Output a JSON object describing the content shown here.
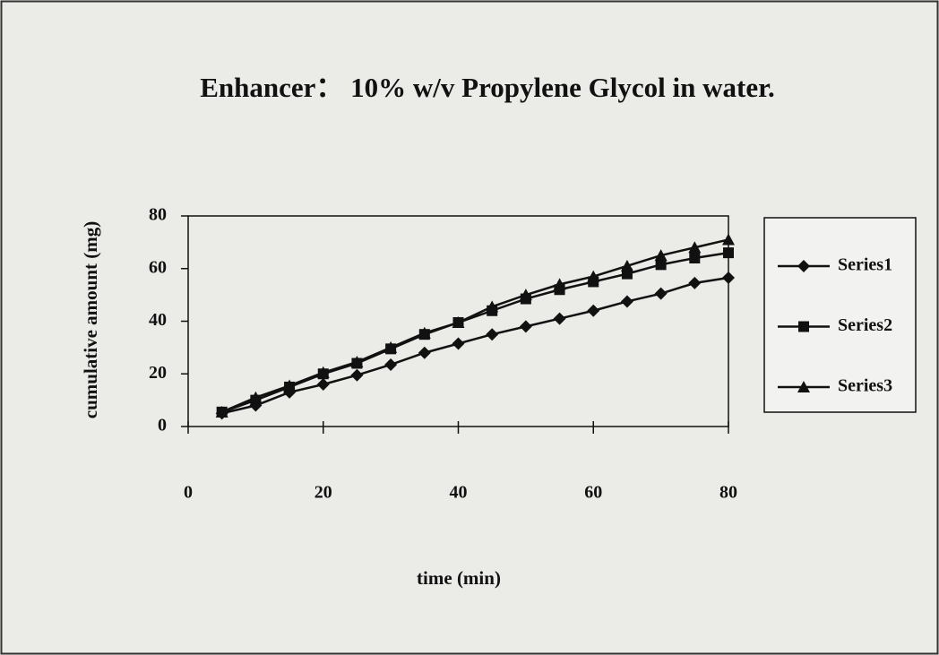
{
  "chart_data": {
    "type": "line",
    "title": "Enhancer： 10% w/v Propylene Glycol in water.",
    "x_label": "time (min)",
    "y_label": "cumulative amount (mg)",
    "x": [
      5,
      10,
      15,
      20,
      25,
      30,
      35,
      40,
      45,
      50,
      55,
      60,
      65,
      70,
      75,
      80
    ],
    "series": [
      {
        "name": "Series1",
        "color": "#111111",
        "marker": "diamond",
        "values": [
          5,
          8,
          13,
          16,
          19.5,
          23.5,
          28,
          31.5,
          35,
          38,
          41,
          44,
          47.5,
          50.5,
          54.5,
          56.5
        ]
      },
      {
        "name": "Series2",
        "color": "#111111",
        "marker": "square",
        "values": [
          5.5,
          10,
          15,
          20,
          24,
          29.5,
          35,
          39.5,
          44,
          48.5,
          52,
          55,
          58,
          61.5,
          64,
          66
        ]
      },
      {
        "name": "Series3",
        "color": "#111111",
        "marker": "triangle",
        "values": [
          5.5,
          11,
          15.5,
          20.5,
          24.5,
          30,
          35.5,
          39.5,
          45.5,
          50,
          54,
          57,
          61,
          65,
          68,
          71
        ]
      }
    ],
    "xlim": [
      0,
      80
    ],
    "xticks": [
      0,
      20,
      40,
      60,
      80
    ],
    "ylim": [
      0,
      80
    ],
    "yticks": [
      0,
      20,
      40,
      60,
      80
    ],
    "grid": false,
    "legend": "right"
  }
}
